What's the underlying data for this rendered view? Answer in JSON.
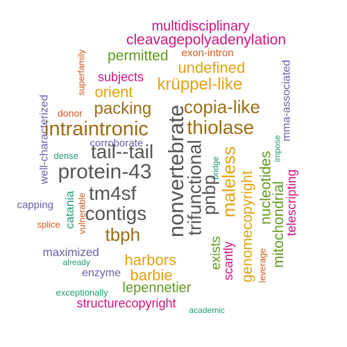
{
  "words": [
    {
      "id": "multidisciplinary",
      "text": "multidisciplinary",
      "color": "#d4127f"
    },
    {
      "id": "cleavagepolyadenylation",
      "text": "cleavagepolyadenylation",
      "color": "#d4127f"
    },
    {
      "id": "permitted",
      "text": "permitted",
      "color": "#5f9a1f"
    },
    {
      "id": "exon-intron",
      "text": "exon-intron",
      "color": "#d1591d"
    },
    {
      "id": "superfamily",
      "text": "superfamily",
      "color": "#d1591d"
    },
    {
      "id": "undefined",
      "text": "undefined",
      "color": "#e3a112"
    },
    {
      "id": "mma-associated",
      "text": "mma-associated",
      "color": "#6a5fa8"
    },
    {
      "id": "subjects",
      "text": "subjects",
      "color": "#d4127f"
    },
    {
      "id": "kruppel-like",
      "text": "krüppel-like",
      "color": "#e3a112"
    },
    {
      "id": "orient",
      "text": "orient",
      "color": "#e3a112"
    },
    {
      "id": "well-characterized",
      "text": "well-characterized",
      "color": "#6a5fa8"
    },
    {
      "id": "donor",
      "text": "donor",
      "color": "#d1591d"
    },
    {
      "id": "packing",
      "text": "packing",
      "color": "#9c6d16"
    },
    {
      "id": "nonvertebrate",
      "text": "nonvertebrate",
      "color": "#555555"
    },
    {
      "id": "copia-like",
      "text": "copia-like",
      "color": "#9c6d16"
    },
    {
      "id": "intraintronic",
      "text": "intraintronic",
      "color": "#9c6d16"
    },
    {
      "id": "thiolase",
      "text": "thiolase",
      "color": "#9c6d16"
    },
    {
      "id": "corroborate",
      "text": "corroborate",
      "color": "#6a5fa8"
    },
    {
      "id": "trifunctional",
      "text": "trifunctional",
      "color": "#555555"
    },
    {
      "id": "impose",
      "text": "impose",
      "color": "#1f9c76"
    },
    {
      "id": "nucleotides",
      "text": "nucleotides",
      "color": "#5f9a1f"
    },
    {
      "id": "dense",
      "text": "dense",
      "color": "#1f9c76"
    },
    {
      "id": "tail--tail",
      "text": "tail--tail",
      "color": "#555555"
    },
    {
      "id": "bridge",
      "text": "bridge",
      "color": "#1f9c76"
    },
    {
      "id": "maleless",
      "text": "maleless",
      "color": "#e3a112"
    },
    {
      "id": "telescripting",
      "text": "telescripting",
      "color": "#d4127f"
    },
    {
      "id": "protein-43",
      "text": "protein-43",
      "color": "#555555"
    },
    {
      "id": "pnbp",
      "text": "pnbp",
      "color": "#555555"
    },
    {
      "id": "genomecopyright",
      "text": "genomecopyright",
      "color": "#e3a112"
    },
    {
      "id": "mitochondrial",
      "text": "mitochondrial",
      "color": "#5f9a1f"
    },
    {
      "id": "tm4sf",
      "text": "tm4sf",
      "color": "#555555"
    },
    {
      "id": "capping",
      "text": "capping",
      "color": "#6a5fa8"
    },
    {
      "id": "catania",
      "text": "catania",
      "color": "#1f9c76"
    },
    {
      "id": "vulnerable",
      "text": "vulnerable",
      "color": "#d1591d"
    },
    {
      "id": "contigs",
      "text": "contigs",
      "color": "#555555"
    },
    {
      "id": "splice",
      "text": "splice",
      "color": "#d1591d"
    },
    {
      "id": "tbph",
      "text": "tbph",
      "color": "#9c6d16"
    },
    {
      "id": "exists",
      "text": "exists",
      "color": "#5f9a1f"
    },
    {
      "id": "scantly",
      "text": "scantly",
      "color": "#d4127f"
    },
    {
      "id": "leverage",
      "text": "leverage",
      "color": "#d1591d"
    },
    {
      "id": "maximized",
      "text": "maximized",
      "color": "#6a5fa8"
    },
    {
      "id": "already",
      "text": "already",
      "color": "#1f9c76"
    },
    {
      "id": "harbors",
      "text": "harbors",
      "color": "#e3a112"
    },
    {
      "id": "enzyme",
      "text": "enzyme",
      "color": "#6a5fa8"
    },
    {
      "id": "barbie",
      "text": "barbie",
      "color": "#e3a112"
    },
    {
      "id": "exceptionally",
      "text": "exceptionally",
      "color": "#1f9c76"
    },
    {
      "id": "lepennetier",
      "text": "lepennetier",
      "color": "#5f9a1f"
    },
    {
      "id": "structurecopyright",
      "text": "structurecopyright",
      "color": "#d4127f"
    },
    {
      "id": "academic",
      "text": "academic",
      "color": "#1f9c76"
    }
  ]
}
